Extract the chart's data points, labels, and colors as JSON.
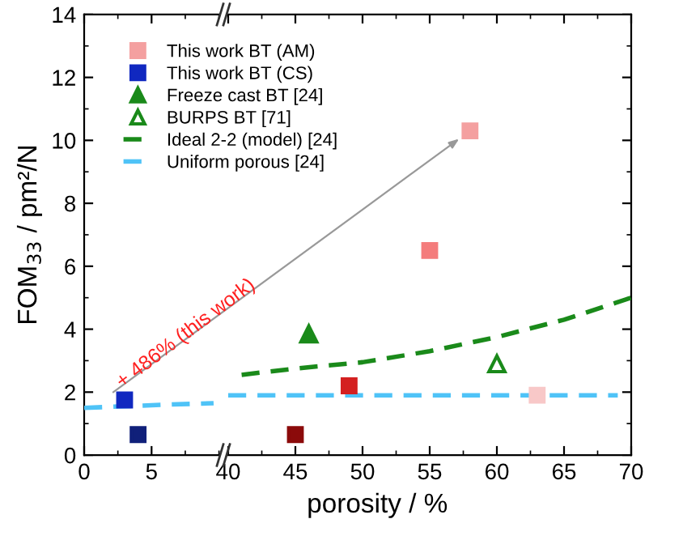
{
  "chart_data": [
    {
      "type": "scatter",
      "ylabel": "FOM$_{33}$ / pm²/N",
      "xlim": [
        0,
        10
      ],
      "xticks": [
        0,
        5
      ],
      "ylim": [
        0,
        14
      ],
      "yticks": [
        0,
        2,
        4,
        6,
        8,
        10,
        12,
        14
      ],
      "grid": false,
      "annotations": [
        {
          "text": "+ 486% (this work)",
          "x": 3,
          "y": 2
        }
      ],
      "series": [
        {
          "name": "This work BT (CS)",
          "marker": "square",
          "x": [
            3,
            4
          ],
          "values": [
            1.75,
            0.65
          ],
          "colors": [
            "#1028c0",
            "#10207a"
          ]
        },
        {
          "type": "line",
          "line_style": "dashed",
          "marker": "none",
          "color": "#4fc3f7",
          "x": [
            0,
            3,
            6,
            9.6
          ],
          "values": [
            1.5,
            1.55,
            1.6,
            1.65
          ]
        }
      ]
    },
    {
      "type": "scatter",
      "xlabel": "porosity / %",
      "xlim": [
        40,
        70
      ],
      "xticks": [
        40,
        45,
        50,
        55,
        60,
        65,
        70
      ],
      "ylim": [
        0,
        14
      ],
      "yticks": [
        0,
        2,
        4,
        6,
        8,
        10,
        12,
        14
      ],
      "tick_labels": "x",
      "grid": false,
      "legend": "top left",
      "series": [
        {
          "name": "This work BT (AM)",
          "marker": "square",
          "x": [
            45,
            49,
            55,
            58,
            63
          ],
          "values": [
            0.65,
            2.2,
            6.5,
            10.3,
            1.9
          ],
          "colors": [
            "#8b0a0a",
            "#d42020",
            "#f47c7c",
            "#f4a0a0",
            "#f8c8c8"
          ]
        },
        {
          "name": "Freeze cast BT [24]",
          "marker": "triangle",
          "color": "#1a8a1a",
          "x": [
            46
          ],
          "values": [
            3.85
          ]
        },
        {
          "name": "BURPS BT [71]",
          "marker": "triangle_open",
          "color": "#1a8a1a",
          "x": [
            60
          ],
          "values": [
            2.9
          ]
        },
        {
          "name": "Ideal 2-2 (model) [24]",
          "type": "line",
          "line_style": "dashed",
          "marker": "none",
          "color": "#1a8a1a",
          "x": [
            41,
            45,
            50,
            55,
            60,
            65,
            70
          ],
          "values": [
            2.55,
            2.75,
            2.95,
            3.3,
            3.75,
            4.3,
            5.0
          ]
        },
        {
          "name": "Uniform porous [24]",
          "type": "line",
          "line_style": "dashed",
          "marker": "none",
          "color": "#4fc3f7",
          "x": [
            40,
            50,
            60,
            69
          ],
          "values": [
            1.9,
            1.9,
            1.9,
            1.9
          ]
        }
      ]
    }
  ]
}
